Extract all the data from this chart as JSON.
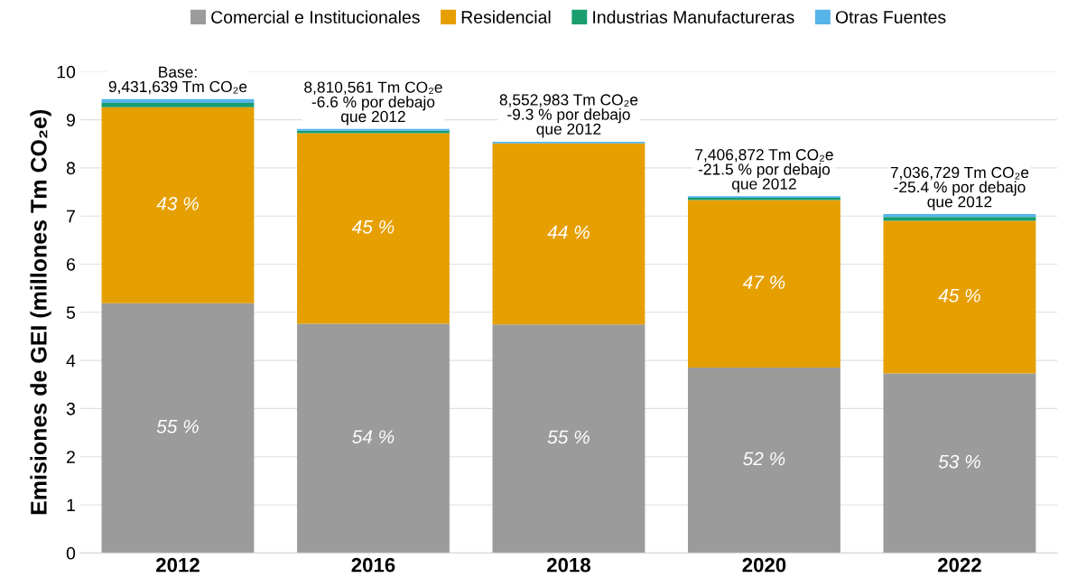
{
  "chart_data": {
    "type": "bar",
    "stacked": true,
    "ylabel": "Emisiones de GEI (millones Tm CO₂e)",
    "categories": [
      "2012",
      "2016",
      "2018",
      "2020",
      "2022"
    ],
    "series": [
      {
        "name": "Comercial e Institucionales",
        "color": "#9b9b9b",
        "values": [
          5.19,
          4.76,
          4.75,
          3.85,
          3.73
        ]
      },
      {
        "name": "Residencial",
        "color": "#e69f00",
        "values": [
          4.07,
          3.96,
          3.76,
          3.48,
          3.17
        ]
      },
      {
        "name": "Industrias Manufactureras",
        "color": "#1a9e6e",
        "values": [
          0.09,
          0.05,
          null,
          0.05,
          0.08
        ]
      },
      {
        "name": "Otras Fuentes",
        "color": "#56b4e9",
        "values": [
          0.08,
          0.04,
          0.03,
          0.03,
          0.06
        ]
      }
    ],
    "annotations": [
      "55 %",
      "54 %",
      "55 %",
      "52 %",
      "53 %",
      "43 %",
      "45 %",
      "44 %",
      "47 %",
      "45 %",
      {
        "text": "Base:\n9,431,639 Tm CO₂e",
        "x": "2012",
        "y": 9.43
      },
      {
        "text": "8,810,561 Tm CO₂e\n-6.6 % por debajo\nque 2012",
        "x": "2016",
        "y": 8.81
      },
      {
        "text": "8,552,983 Tm CO₂e\n-9.3 % por debajo\nque 2012",
        "x": "2018",
        "y": 8.55
      },
      {
        "text": "7,406,872 Tm CO₂e\n-21.5 % por debajo\nque 2012",
        "x": "2020",
        "y": 7.41
      },
      {
        "text": "7,036,729 Tm CO₂e\n-25.4 % por debajo\nque 2012",
        "x": "2022",
        "y": 7.04
      }
    ],
    "ylim": [
      0,
      10
    ],
    "yticks": [
      0,
      1,
      2,
      3,
      4,
      5,
      6,
      7,
      8,
      9,
      10
    ],
    "grid": "y",
    "legend": "top"
  }
}
